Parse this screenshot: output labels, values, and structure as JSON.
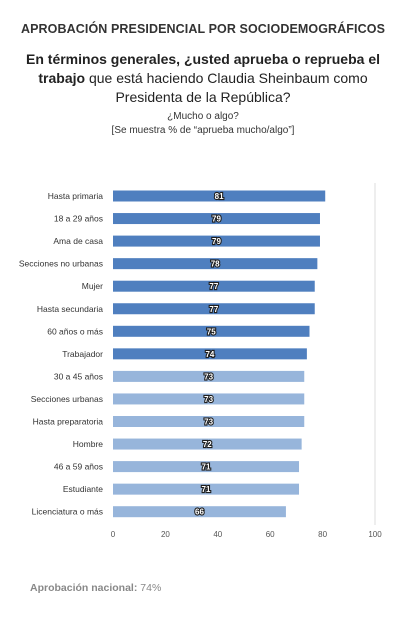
{
  "header": {
    "title": "APROBACIÓN PRESIDENCIAL POR SOCIODEMOGRÁFICOS"
  },
  "question": {
    "bold": "En términos generales, ¿usted aprueba o reprueba el trabajo",
    "rest": "que está haciendo Claudia Sheinbaum como Presidenta de la República?",
    "sub1": "¿Mucho o algo?",
    "sub2": "[Se muestra % de “aprueba mucho/algo”]"
  },
  "footer": {
    "label": "Aprobación nacional:",
    "value": "74%"
  },
  "colors": {
    "dark_bar": "#4f7fbf",
    "light_bar": "#97b5db",
    "label_bg": "#1f1f1f",
    "label_text": "#ffffff"
  },
  "chart_data": {
    "type": "bar",
    "orientation": "horizontal",
    "categories": [
      "Hasta primaria",
      "18 a 29 años",
      "Ama de casa",
      "Secciones no urbanas",
      "Mujer",
      "Hasta secundaria",
      "60 años o más",
      "Trabajador",
      "30 a 45 años",
      "Secciones urbanas",
      "Hasta preparatoria",
      "Hombre",
      "46 a 59 años",
      "Estudiante",
      "Licenciatura o más"
    ],
    "values": [
      81,
      79,
      79,
      78,
      77,
      77,
      75,
      74,
      73,
      73,
      73,
      72,
      71,
      71,
      66
    ],
    "highlight": [
      "dark",
      "dark",
      "dark",
      "dark",
      "dark",
      "dark",
      "dark",
      "dark",
      "light",
      "light",
      "light",
      "light",
      "light",
      "light",
      "light"
    ],
    "xlim": [
      0,
      100
    ],
    "xticks": [
      0,
      20,
      40,
      60,
      80,
      100
    ],
    "grid": false
  }
}
